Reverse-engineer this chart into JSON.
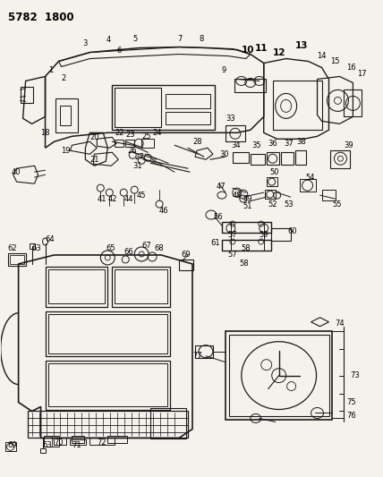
{
  "title": "5782  1800",
  "bg_color": "#f0ece4",
  "line_color": "#1a1a1a",
  "text_color": "#000000",
  "fig_width": 4.28,
  "fig_height": 5.33,
  "dpi": 100,
  "title_fs": 8.5,
  "label_fs": 6.0,
  "bold_label_fs": 7.5
}
